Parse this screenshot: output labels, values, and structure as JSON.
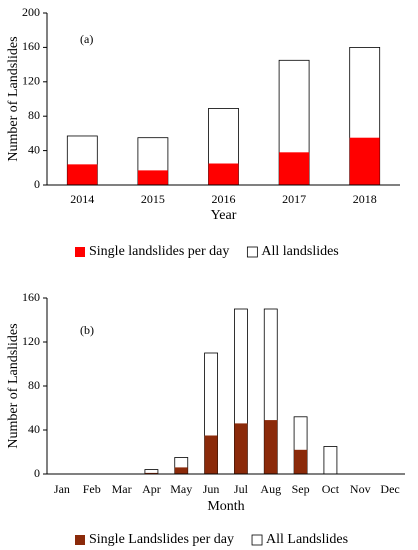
{
  "chart_data": [
    {
      "type": "bar",
      "annotation": "(a)",
      "x_label": "Year",
      "y_label": "Number of Landslides",
      "categories": [
        "2014",
        "2015",
        "2016",
        "2017",
        "2018"
      ],
      "series": [
        {
          "name": "Single landslides per day",
          "color": "#ff0000",
          "values": [
            24,
            17,
            25,
            38,
            55
          ]
        },
        {
          "name": "All landslides",
          "color": "#ffffff",
          "values": [
            57,
            55,
            89,
            145,
            160
          ]
        }
      ],
      "ylim": [
        0,
        200
      ],
      "yticks": [
        0,
        40,
        80,
        120,
        160,
        200
      ],
      "overlay": true,
      "legend": "bottom"
    },
    {
      "type": "bar",
      "annotation": "(b)",
      "x_label": "Month",
      "y_label": "Number of Landslides",
      "categories": [
        "Jan",
        "Feb",
        "Mar",
        "Apr",
        "May",
        "Jun",
        "Jul",
        "Aug",
        "Sep",
        "Oct",
        "Nov",
        "Dec"
      ],
      "series": [
        {
          "name": "Single Landslides per day",
          "color": "#8b2a0a",
          "values": [
            0,
            0,
            0,
            1,
            6,
            35,
            46,
            49,
            22,
            0,
            0,
            0
          ]
        },
        {
          "name": "All Landslides",
          "color": "#ffffff",
          "values": [
            0,
            0,
            0,
            4,
            15,
            110,
            150,
            150,
            52,
            25,
            0,
            0
          ]
        }
      ],
      "ylim": [
        0,
        160
      ],
      "yticks": [
        0,
        40,
        80,
        120,
        160
      ],
      "overlay": true,
      "legend": "bottom"
    }
  ]
}
